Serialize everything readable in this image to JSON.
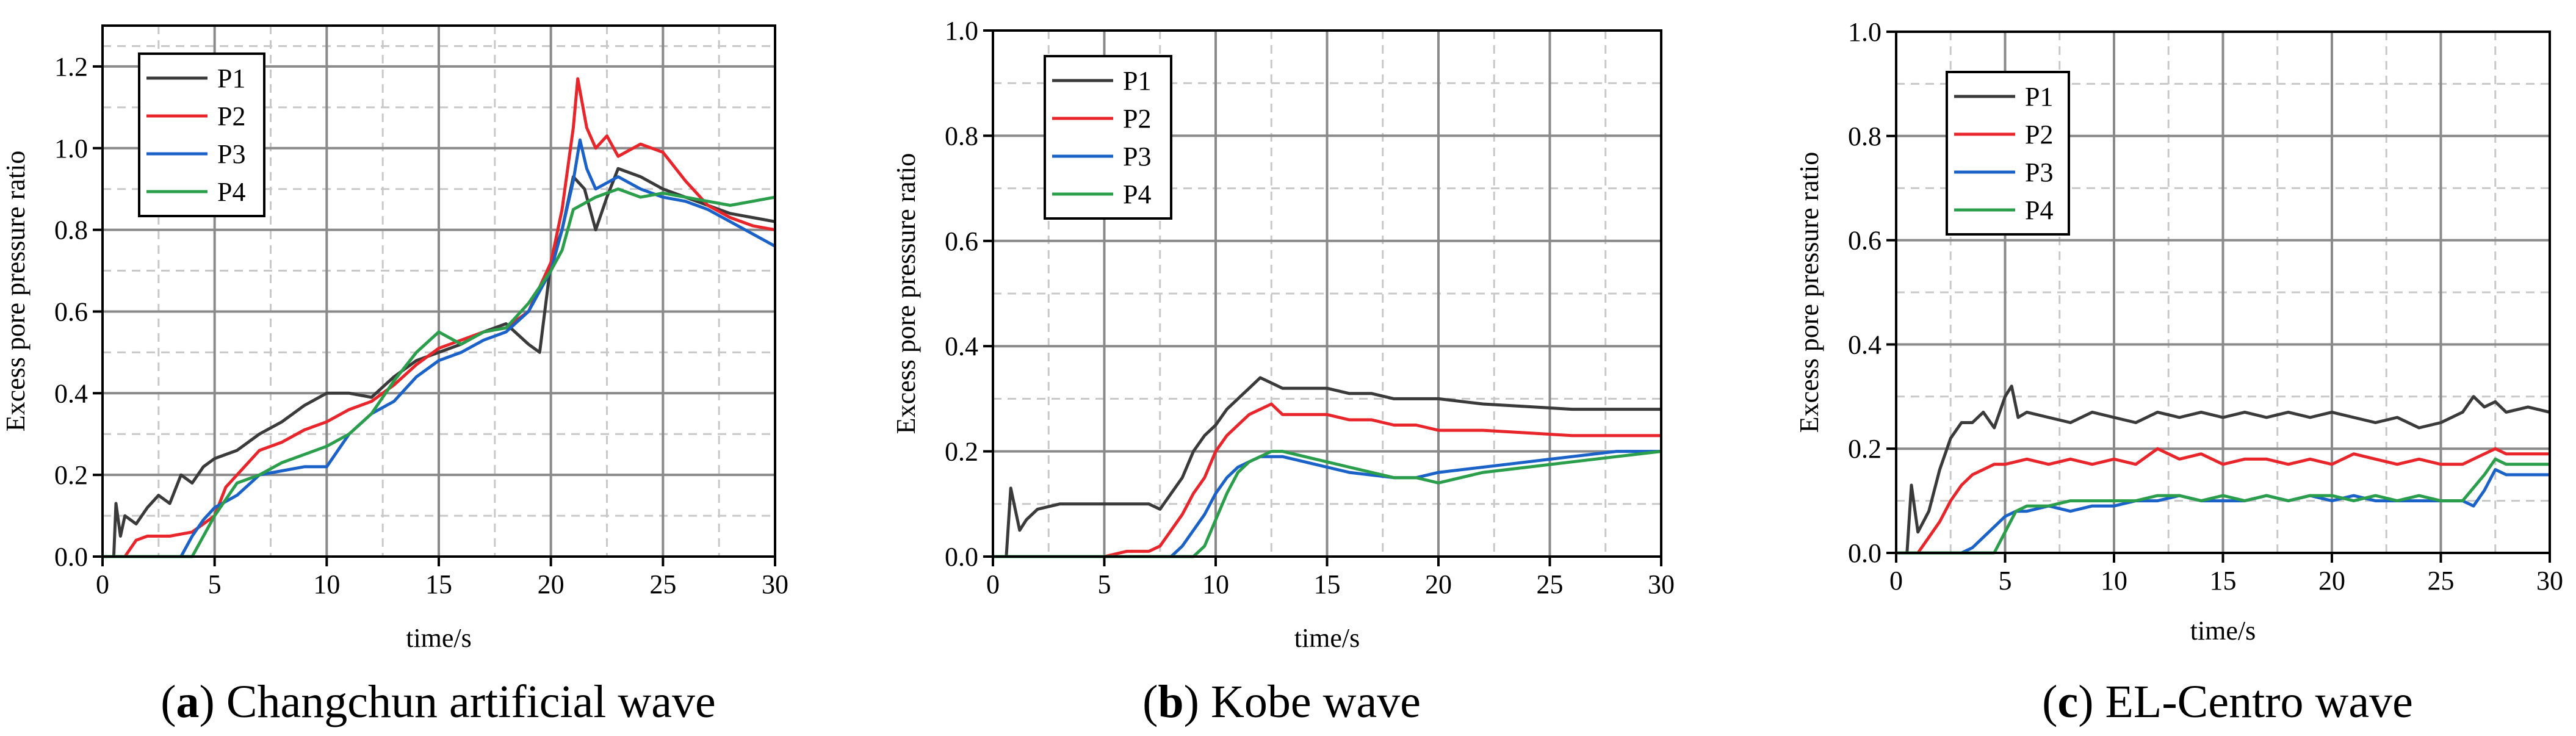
{
  "chart_data": [
    {
      "type": "line",
      "caption_letter": "a",
      "caption_text": ") Changchun artificial wave",
      "xlabel": "time/s",
      "ylabel": "Excess pore pressure ratio",
      "xlim": [
        0,
        30
      ],
      "ylim": [
        0,
        1.3
      ],
      "x_ticks": [
        "0",
        "5",
        "10",
        "15",
        "20",
        "25",
        "30"
      ],
      "y_ticks": [
        "0.0",
        "0.2",
        "0.4",
        "0.6",
        "0.8",
        "1.0",
        "1.2"
      ],
      "legend": "top-left",
      "grid": true,
      "series": [
        {
          "name": "P1",
          "color": "#3a3a3a",
          "x": [
            0,
            0.5,
            0.6,
            0.8,
            1.0,
            1.5,
            2,
            2.5,
            3,
            3.5,
            4,
            4.5,
            5,
            6,
            7,
            8,
            9,
            10,
            11,
            12,
            13,
            14,
            15,
            16,
            17,
            18,
            19,
            19.5,
            20,
            20.5,
            21,
            21.5,
            22,
            22.5,
            23,
            24,
            25,
            26,
            27,
            28,
            29,
            30
          ],
          "y": [
            0,
            0,
            0.13,
            0.05,
            0.1,
            0.08,
            0.12,
            0.15,
            0.13,
            0.2,
            0.18,
            0.22,
            0.24,
            0.26,
            0.3,
            0.33,
            0.37,
            0.4,
            0.4,
            0.39,
            0.44,
            0.48,
            0.5,
            0.52,
            0.55,
            0.57,
            0.52,
            0.5,
            0.72,
            0.8,
            0.93,
            0.9,
            0.8,
            0.88,
            0.95,
            0.93,
            0.9,
            0.88,
            0.86,
            0.84,
            0.83,
            0.82
          ]
        },
        {
          "name": "P2",
          "color": "#e8252a",
          "x": [
            0,
            1,
            1.5,
            2,
            3,
            4,
            5,
            5.5,
            6,
            7,
            8,
            9,
            10,
            11,
            12,
            13,
            14,
            15,
            16,
            17,
            18,
            19,
            20,
            20.5,
            21,
            21.2,
            21.6,
            22,
            22.5,
            23,
            24,
            25,
            26,
            27,
            28,
            29,
            30
          ],
          "y": [
            0,
            0,
            0.04,
            0.05,
            0.05,
            0.06,
            0.1,
            0.17,
            0.2,
            0.26,
            0.28,
            0.31,
            0.33,
            0.36,
            0.38,
            0.42,
            0.47,
            0.51,
            0.53,
            0.55,
            0.56,
            0.6,
            0.72,
            0.85,
            1.05,
            1.17,
            1.05,
            1.0,
            1.03,
            0.98,
            1.01,
            0.99,
            0.92,
            0.86,
            0.83,
            0.81,
            0.8
          ]
        },
        {
          "name": "P3",
          "color": "#1a62c8",
          "x": [
            0,
            3.5,
            4,
            4.5,
            5,
            6,
            7,
            8,
            9,
            10,
            11,
            12,
            13,
            14,
            15,
            16,
            17,
            18,
            19,
            20,
            20.5,
            21,
            21.3,
            21.6,
            22,
            23,
            24,
            25,
            26,
            27,
            28,
            29,
            30
          ],
          "y": [
            0,
            0,
            0.05,
            0.09,
            0.12,
            0.15,
            0.2,
            0.21,
            0.22,
            0.22,
            0.3,
            0.35,
            0.38,
            0.44,
            0.48,
            0.5,
            0.53,
            0.55,
            0.6,
            0.7,
            0.8,
            0.92,
            1.02,
            0.95,
            0.9,
            0.93,
            0.9,
            0.88,
            0.87,
            0.85,
            0.82,
            0.79,
            0.76
          ]
        },
        {
          "name": "P4",
          "color": "#2a9e4a",
          "x": [
            0,
            4,
            4.5,
            5,
            6,
            7,
            8,
            9,
            10,
            11,
            12,
            13,
            14,
            15,
            16,
            17,
            18,
            19,
            20,
            20.5,
            21,
            22,
            23,
            24,
            25,
            26,
            27,
            28,
            29,
            30
          ],
          "y": [
            0,
            0,
            0.05,
            0.1,
            0.18,
            0.2,
            0.23,
            0.25,
            0.27,
            0.3,
            0.35,
            0.43,
            0.5,
            0.55,
            0.52,
            0.55,
            0.56,
            0.62,
            0.7,
            0.75,
            0.85,
            0.88,
            0.9,
            0.88,
            0.89,
            0.88,
            0.87,
            0.86,
            0.87,
            0.88
          ]
        }
      ]
    },
    {
      "type": "line",
      "caption_letter": "b",
      "caption_text": ") Kobe wave",
      "xlabel": "time/s",
      "ylabel": "Excess pore pressure ratio",
      "xlim": [
        0,
        30
      ],
      "ylim": [
        0,
        1.0
      ],
      "x_ticks": [
        "0",
        "5",
        "10",
        "15",
        "20",
        "25",
        "30"
      ],
      "y_ticks": [
        "0.0",
        "0.2",
        "0.4",
        "0.6",
        "0.8",
        "1.0"
      ],
      "legend": "top-left",
      "grid": true,
      "series": [
        {
          "name": "P1",
          "color": "#3a3a3a",
          "x": [
            0,
            0.6,
            0.8,
            1.2,
            1.5,
            2,
            3,
            4,
            5,
            6,
            7,
            7.5,
            8,
            8.5,
            9,
            9.5,
            10,
            10.5,
            11,
            11.5,
            12,
            12.5,
            13,
            14,
            15,
            16,
            17,
            18,
            19,
            20,
            22,
            24,
            26,
            28,
            30
          ],
          "y": [
            0,
            0,
            0.13,
            0.05,
            0.07,
            0.09,
            0.1,
            0.1,
            0.1,
            0.1,
            0.1,
            0.09,
            0.12,
            0.15,
            0.2,
            0.23,
            0.25,
            0.28,
            0.3,
            0.32,
            0.34,
            0.33,
            0.32,
            0.32,
            0.32,
            0.31,
            0.31,
            0.3,
            0.3,
            0.3,
            0.29,
            0.285,
            0.28,
            0.28,
            0.28
          ]
        },
        {
          "name": "P2",
          "color": "#e8252a",
          "x": [
            0,
            5,
            6,
            7,
            7.5,
            8,
            8.5,
            9,
            9.5,
            10,
            10.5,
            11,
            11.5,
            12,
            12.5,
            13,
            14,
            15,
            16,
            17,
            18,
            19,
            20,
            22,
            24,
            26,
            28,
            30
          ],
          "y": [
            0,
            0,
            0.01,
            0.01,
            0.02,
            0.05,
            0.08,
            0.12,
            0.15,
            0.2,
            0.23,
            0.25,
            0.27,
            0.28,
            0.29,
            0.27,
            0.27,
            0.27,
            0.26,
            0.26,
            0.25,
            0.25,
            0.24,
            0.24,
            0.235,
            0.23,
            0.23,
            0.23
          ]
        },
        {
          "name": "P3",
          "color": "#1a62c8",
          "x": [
            0,
            8,
            8.5,
            9,
            9.5,
            10,
            10.5,
            11,
            11.5,
            12,
            12.5,
            13,
            14,
            15,
            16,
            17,
            18,
            19,
            20,
            22,
            24,
            26,
            28,
            30
          ],
          "y": [
            0,
            0,
            0.02,
            0.05,
            0.08,
            0.12,
            0.15,
            0.17,
            0.18,
            0.19,
            0.19,
            0.19,
            0.18,
            0.17,
            0.16,
            0.155,
            0.15,
            0.15,
            0.16,
            0.17,
            0.18,
            0.19,
            0.2,
            0.2
          ]
        },
        {
          "name": "P4",
          "color": "#2a9e4a",
          "x": [
            0,
            9,
            9.5,
            10,
            10.5,
            11,
            11.5,
            12,
            12.5,
            13,
            14,
            15,
            16,
            17,
            18,
            19,
            20,
            21,
            22,
            24,
            26,
            28,
            30
          ],
          "y": [
            0,
            0,
            0.02,
            0.07,
            0.12,
            0.16,
            0.18,
            0.19,
            0.2,
            0.2,
            0.19,
            0.18,
            0.17,
            0.16,
            0.15,
            0.15,
            0.14,
            0.15,
            0.16,
            0.17,
            0.18,
            0.19,
            0.2
          ]
        }
      ]
    },
    {
      "type": "line",
      "caption_letter": "c",
      "caption_text": ") EL-Centro wave",
      "xlabel": "time/s",
      "ylabel": "Excess pore pressure ratio",
      "xlim": [
        0,
        30
      ],
      "ylim": [
        0,
        1.0
      ],
      "x_ticks": [
        "0",
        "5",
        "10",
        "15",
        "20",
        "25",
        "30"
      ],
      "y_ticks": [
        "0.0",
        "0.2",
        "0.4",
        "0.6",
        "0.8",
        "1.0"
      ],
      "legend": "top-left",
      "grid": true,
      "series": [
        {
          "name": "P1",
          "color": "#3a3a3a",
          "x": [
            0,
            0.5,
            0.7,
            1,
            1.5,
            2,
            2.5,
            3,
            3.5,
            4,
            4.5,
            5,
            5.3,
            5.6,
            6,
            7,
            8,
            9,
            10,
            11,
            12,
            13,
            14,
            15,
            16,
            17,
            18,
            19,
            20,
            21,
            22,
            23,
            24,
            25,
            26,
            26.5,
            27,
            27.5,
            28,
            29,
            30
          ],
          "y": [
            0,
            0,
            0.13,
            0.04,
            0.08,
            0.16,
            0.22,
            0.25,
            0.25,
            0.27,
            0.24,
            0.3,
            0.32,
            0.26,
            0.27,
            0.26,
            0.25,
            0.27,
            0.26,
            0.25,
            0.27,
            0.26,
            0.27,
            0.26,
            0.27,
            0.26,
            0.27,
            0.26,
            0.27,
            0.26,
            0.25,
            0.26,
            0.24,
            0.25,
            0.27,
            0.3,
            0.28,
            0.29,
            0.27,
            0.28,
            0.27
          ]
        },
        {
          "name": "P2",
          "color": "#e8252a",
          "x": [
            0,
            1,
            1.5,
            2,
            2.5,
            3,
            3.5,
            4,
            4.5,
            5,
            6,
            7,
            8,
            9,
            10,
            11,
            12,
            13,
            14,
            15,
            16,
            17,
            18,
            19,
            20,
            21,
            22,
            23,
            24,
            25,
            26,
            27,
            27.5,
            28,
            29,
            30
          ],
          "y": [
            0,
            0,
            0.03,
            0.06,
            0.1,
            0.13,
            0.15,
            0.16,
            0.17,
            0.17,
            0.18,
            0.17,
            0.18,
            0.17,
            0.18,
            0.17,
            0.2,
            0.18,
            0.19,
            0.17,
            0.18,
            0.18,
            0.17,
            0.18,
            0.17,
            0.19,
            0.18,
            0.17,
            0.18,
            0.17,
            0.17,
            0.19,
            0.2,
            0.19,
            0.19,
            0.19
          ]
        },
        {
          "name": "P3",
          "color": "#1a62c8",
          "x": [
            0,
            3,
            3.5,
            4,
            4.5,
            5,
            5.5,
            6,
            7,
            8,
            9,
            10,
            11,
            12,
            13,
            14,
            15,
            16,
            17,
            18,
            19,
            20,
            21,
            22,
            23,
            24,
            25,
            26,
            26.5,
            27,
            27.5,
            28,
            29,
            30
          ],
          "y": [
            0,
            0,
            0.01,
            0.03,
            0.05,
            0.07,
            0.08,
            0.08,
            0.09,
            0.08,
            0.09,
            0.09,
            0.1,
            0.1,
            0.11,
            0.1,
            0.1,
            0.1,
            0.11,
            0.1,
            0.11,
            0.1,
            0.11,
            0.1,
            0.1,
            0.1,
            0.1,
            0.1,
            0.09,
            0.12,
            0.16,
            0.15,
            0.15,
            0.15
          ]
        },
        {
          "name": "P4",
          "color": "#2a9e4a",
          "x": [
            0,
            4.5,
            5,
            5.5,
            6,
            7,
            8,
            9,
            10,
            11,
            12,
            13,
            14,
            15,
            16,
            17,
            18,
            19,
            20,
            21,
            22,
            23,
            24,
            25,
            26,
            27,
            27.5,
            28,
            29,
            30
          ],
          "y": [
            0,
            0,
            0.04,
            0.08,
            0.09,
            0.09,
            0.1,
            0.1,
            0.1,
            0.1,
            0.11,
            0.11,
            0.1,
            0.11,
            0.1,
            0.11,
            0.1,
            0.11,
            0.11,
            0.1,
            0.11,
            0.1,
            0.11,
            0.1,
            0.1,
            0.15,
            0.18,
            0.17,
            0.17,
            0.17
          ]
        }
      ]
    }
  ]
}
